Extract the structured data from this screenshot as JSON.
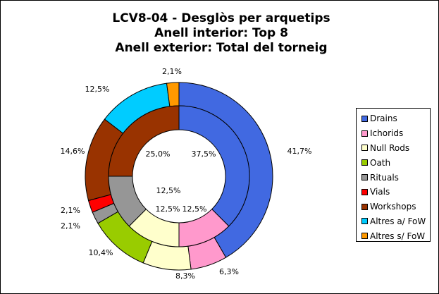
{
  "chart_data": {
    "type": "pie",
    "variant": "doughnut",
    "title": [
      "LCV8-04 - Desglòs per arquetips",
      "Anell interior: Top 8",
      "Anell exterior: Total del torneig"
    ],
    "categories": [
      "Drains",
      "Ichorids",
      "Null Rods",
      "Oath",
      "Rituals",
      "Vials",
      "Workshops",
      "Altres a/ FoW",
      "Altres s/ FoW"
    ],
    "colors": [
      "#4169E1",
      "#FF99CC",
      "#FFFFCC",
      "#99CC00",
      "#969696",
      "#FF0000",
      "#993300",
      "#00CCFF",
      "#FF9900"
    ],
    "series": [
      {
        "name": "Top 8",
        "ring": "inner",
        "values": [
          37.5,
          12.5,
          12.5,
          0,
          12.5,
          0,
          25.0,
          0,
          0
        ],
        "labels": [
          "37,5%",
          "12,5%",
          "12,5%",
          "",
          "12,5%",
          "",
          "25,0%",
          "",
          ""
        ]
      },
      {
        "name": "Total del torneig",
        "ring": "outer",
        "values": [
          41.7,
          6.3,
          8.3,
          10.4,
          2.1,
          2.1,
          14.6,
          12.5,
          2.1
        ],
        "labels": [
          "41,7%",
          "6,3%",
          "8,3%",
          "10,4%",
          "2,1%",
          "2,1%",
          "14,6%",
          "12,5%",
          "2,1%"
        ]
      }
    ],
    "legend_position": "right"
  }
}
